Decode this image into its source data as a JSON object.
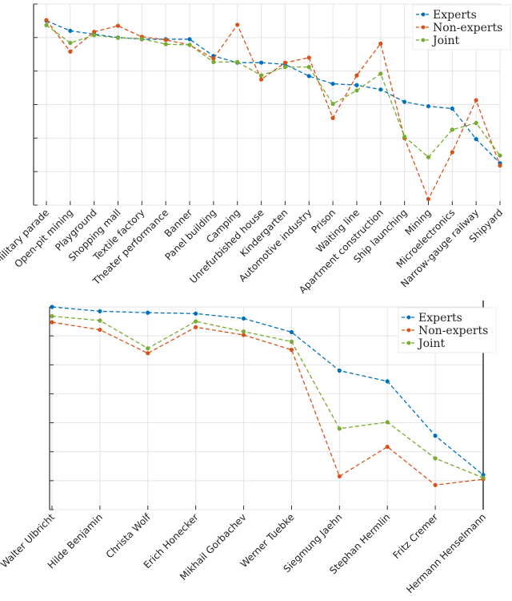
{
  "colors": {
    "experts": "#0072BD",
    "non_experts": "#D95319",
    "joint": "#77AC30"
  },
  "chart_data": [
    {
      "type": "line",
      "legend_position": "top-right",
      "ylim": [
        0.4,
        1
      ],
      "yticks": [
        "0.4",
        "0.5",
        "0.6",
        "0.7",
        "0.8",
        "0.9",
        "1"
      ],
      "categories": [
        "Military parade",
        "Open-pit mining",
        "Playground",
        "Shopping mall",
        "Textile factory",
        "Theater performance",
        "Banner",
        "Panel building",
        "Camping",
        "Unrefurbished house",
        "Kindergarten",
        "Automotive industry",
        "Prison",
        "Waiting line",
        "Apartment construction",
        "Ship launching",
        "Mining",
        "Microelectronics",
        "Narrow-gauge railway",
        "Shipyard"
      ],
      "series": [
        {
          "name": "Experts",
          "color": "#0072BD",
          "values": [
            0.95,
            0.92,
            0.91,
            0.9,
            0.895,
            0.895,
            0.895,
            0.845,
            0.825,
            0.825,
            0.82,
            0.785,
            0.762,
            0.758,
            0.745,
            0.708,
            0.695,
            0.688,
            0.597,
            0.525
          ]
        },
        {
          "name": "Non-experts",
          "color": "#D95319",
          "values": [
            0.952,
            0.858,
            0.917,
            0.935,
            0.902,
            0.893,
            0.878,
            0.837,
            0.938,
            0.775,
            0.825,
            0.84,
            0.66,
            0.787,
            0.882,
            0.6,
            0.418,
            0.558,
            0.713,
            0.518
          ]
        },
        {
          "name": "Joint",
          "color": "#77AC30",
          "values": [
            0.937,
            0.884,
            0.907,
            0.899,
            0.896,
            0.88,
            0.878,
            0.827,
            0.827,
            0.787,
            0.812,
            0.812,
            0.702,
            0.742,
            0.792,
            0.604,
            0.543,
            0.625,
            0.645,
            0.548
          ]
        }
      ]
    },
    {
      "type": "line",
      "legend_position": "top-right",
      "ylim": [
        0.3,
        1
      ],
      "yticks": [
        "0.3",
        "0.4",
        "0.5",
        "0.6",
        "0.7",
        "0.8",
        "0.9",
        "1"
      ],
      "categories": [
        "Walter Ulbricht",
        "Hilde Benjamin",
        "Christa Wolf",
        "Erich Honecker",
        "Mikhail Gorbachev",
        "Werner Tuebke",
        "Siegmung Jaehn",
        "Stephan Hermlin",
        "Fritz Cremer",
        "Hermann Henselmann"
      ],
      "series": [
        {
          "name": "Experts",
          "color": "#0072BD",
          "values": [
            1.0,
            0.985,
            0.98,
            0.977,
            0.96,
            0.913,
            0.78,
            0.743,
            0.555,
            0.42
          ]
        },
        {
          "name": "Non-experts",
          "color": "#D95319",
          "values": [
            0.947,
            0.921,
            0.84,
            0.93,
            0.903,
            0.852,
            0.415,
            0.517,
            0.385,
            0.405
          ]
        },
        {
          "name": "Joint",
          "color": "#77AC30",
          "values": [
            0.968,
            0.953,
            0.857,
            0.95,
            0.915,
            0.88,
            0.58,
            0.602,
            0.477,
            0.41
          ]
        }
      ]
    }
  ]
}
